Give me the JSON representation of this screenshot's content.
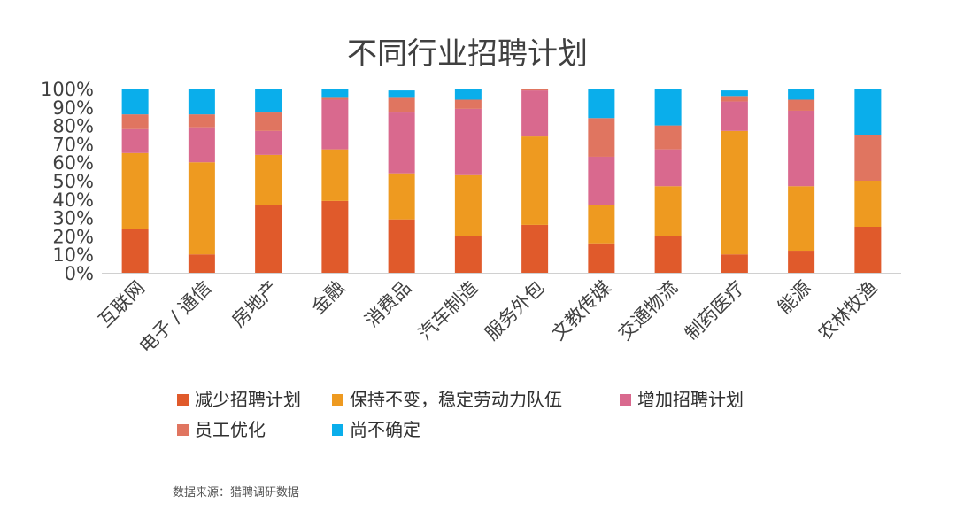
{
  "chart_data": {
    "type": "bar",
    "stacked": true,
    "title": "不同行业招聘计划",
    "categories": [
      "互联网",
      "电子 / 通信",
      "房地产",
      "金融",
      "消费品",
      "汽车制造",
      "服务外包",
      "文教传媒",
      "交通物流",
      "制药医疗",
      "能源",
      "农林牧渔"
    ],
    "series": [
      {
        "name": "减少招聘计划",
        "color": "#E05A2B",
        "values": [
          24,
          10,
          37,
          39,
          29,
          20,
          26,
          16,
          20,
          10,
          12,
          25
        ]
      },
      {
        "name": "保持不变，稳定劳动力队伍",
        "color": "#EE9A20",
        "values": [
          41,
          50,
          27,
          28,
          25,
          33,
          48,
          21,
          27,
          67,
          35,
          25
        ]
      },
      {
        "name": "增加招聘计划",
        "color": "#D9698E",
        "values": [
          13,
          19,
          13,
          27,
          33,
          36,
          25,
          26,
          20,
          16,
          41,
          0
        ]
      },
      {
        "name": "员工优化",
        "color": "#E07560",
        "values": [
          8,
          7,
          10,
          1,
          8,
          5,
          1,
          21,
          13,
          3,
          6,
          25
        ]
      },
      {
        "name": "尚不确定",
        "color": "#0AAEEB",
        "values": [
          14,
          14,
          13,
          5,
          4,
          6,
          0,
          16,
          20,
          3,
          6,
          25
        ]
      }
    ],
    "y_ticks": [
      "100%",
      "90%",
      "80%",
      "70%",
      "60%",
      "50%",
      "40%",
      "30%",
      "20%",
      "10%",
      "0%"
    ],
    "ylim": [
      0,
      100
    ],
    "legend_position": "bottom",
    "grid": false
  },
  "source": "数据来源：猎聘调研数据"
}
